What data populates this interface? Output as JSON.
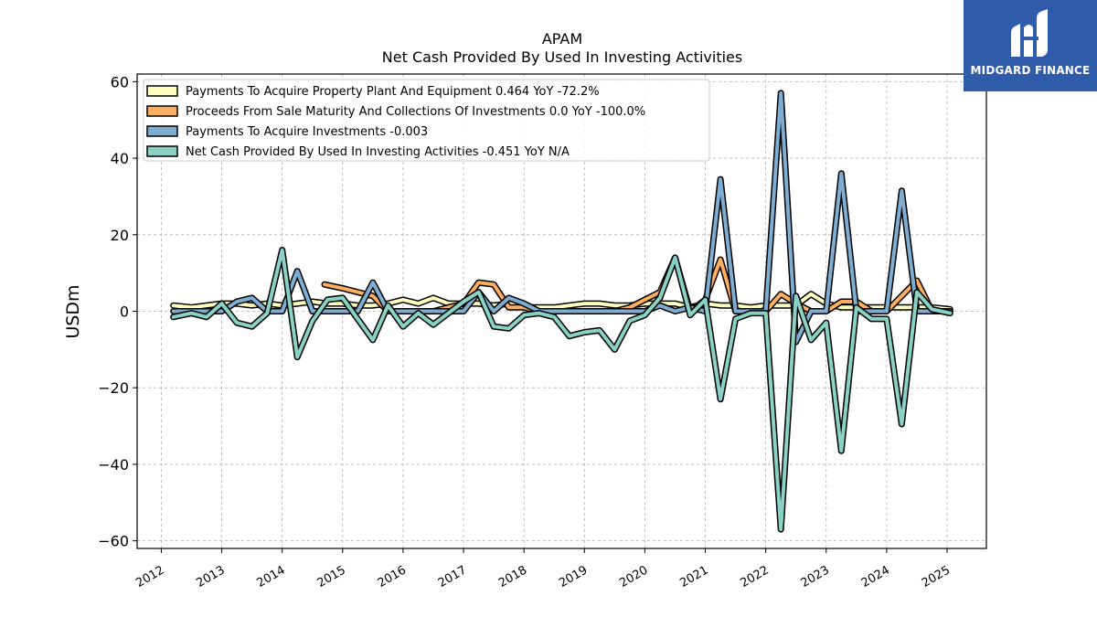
{
  "chart_data": {
    "type": "line",
    "title": "APAM",
    "subtitle": "Net Cash Provided By Used In Investing Activities",
    "ylabel": "USDm",
    "xlabel": "",
    "ylim": [
      -62,
      62
    ],
    "xlim": [
      2011.6,
      2025.65
    ],
    "yticks": [
      -60,
      -40,
      -20,
      0,
      20,
      40,
      60
    ],
    "ytick_labels": [
      "−60",
      "−40",
      "−20",
      "0",
      "20",
      "40",
      "60"
    ],
    "xticks": [
      2012,
      2013,
      2014,
      2015,
      2016,
      2017,
      2018,
      2019,
      2020,
      2021,
      2022,
      2023,
      2024,
      2025
    ],
    "xtick_labels": [
      "2012",
      "2013",
      "2014",
      "2015",
      "2016",
      "2017",
      "2018",
      "2019",
      "2020",
      "2021",
      "2022",
      "2023",
      "2024",
      "2025"
    ],
    "grid": true,
    "legend_position": "top-left",
    "series": [
      {
        "name": "Payments To Acquire Property Plant And Equipment  0.464 YoY -72.2%",
        "color": "#ffffbf",
        "x": [
          2012.2,
          2012.5,
          2012.75,
          2013.0,
          2013.25,
          2013.5,
          2013.75,
          2014.0,
          2014.25,
          2014.5,
          2014.75,
          2015.0,
          2015.25,
          2015.5,
          2015.75,
          2016.0,
          2016.25,
          2016.5,
          2016.75,
          2017.0,
          2017.25,
          2017.5,
          2017.75,
          2018.0,
          2018.25,
          2018.5,
          2018.75,
          2019.0,
          2019.25,
          2019.5,
          2019.75,
          2020.0,
          2020.25,
          2020.5,
          2020.75,
          2021.0,
          2021.25,
          2021.5,
          2021.75,
          2022.0,
          2022.25,
          2022.5,
          2022.75,
          2023.0,
          2023.25,
          2023.5,
          2023.75,
          2024.0,
          2024.25,
          2024.5,
          2024.75,
          2025.05
        ],
        "values": [
          1.5,
          1.0,
          1.5,
          2.0,
          2.0,
          1.5,
          2.0,
          1.5,
          2.0,
          2.5,
          2.0,
          2.0,
          1.5,
          1.5,
          2.0,
          3.0,
          2.0,
          3.5,
          2.0,
          2.0,
          2.0,
          1.5,
          2.0,
          1.0,
          1.0,
          1.0,
          1.5,
          2.0,
          2.0,
          1.5,
          1.5,
          2.0,
          2.0,
          2.0,
          1.0,
          2.0,
          1.5,
          1.5,
          1.0,
          1.5,
          1.5,
          1.5,
          4.5,
          2.0,
          1.0,
          1.0,
          1.0,
          1.0,
          1.0,
          1.0,
          1.0,
          0.5
        ]
      },
      {
        "name": "Proceeds From Sale Maturity And Collections Of Investments  0.0 YoY -100.0%",
        "color": "#fdae61",
        "x": [
          2014.7,
          2015.0,
          2015.25,
          2015.5,
          2015.75,
          2016.0,
          2016.25,
          2016.5,
          2016.75,
          2017.0,
          2017.25,
          2017.5,
          2017.75,
          2018.0,
          2018.25,
          2018.5,
          2018.75,
          2019.0,
          2019.25,
          2019.5,
          2019.75,
          2020.0,
          2020.25,
          2020.5,
          2020.75,
          2021.0,
          2021.25,
          2021.5,
          2021.75,
          2022.0,
          2022.25,
          2022.5,
          2022.75,
          2023.0,
          2023.25,
          2023.5,
          2023.75,
          2024.0,
          2024.25,
          2024.5,
          2024.75,
          2025.05
        ],
        "values": [
          7.0,
          6.0,
          5.0,
          4.0,
          0.0,
          0.0,
          0.0,
          0.0,
          1.0,
          2.0,
          7.5,
          7.0,
          1.0,
          1.0,
          0.0,
          0.0,
          0.0,
          0.0,
          0.0,
          0.0,
          1.0,
          3.0,
          5.0,
          14.0,
          0.0,
          3.0,
          13.5,
          0.0,
          0.0,
          0.0,
          4.5,
          2.0,
          0.0,
          0.0,
          2.5,
          2.5,
          0.0,
          0.0,
          4.0,
          8.0,
          0.0,
          0.0
        ]
      },
      {
        "name": "Payments To Acquire Investments  -0.003",
        "color": "#7fadd2",
        "x": [
          2012.2,
          2012.5,
          2012.75,
          2013.0,
          2013.25,
          2013.5,
          2013.75,
          2014.0,
          2014.25,
          2014.5,
          2014.75,
          2015.0,
          2015.25,
          2015.5,
          2015.75,
          2016.0,
          2016.25,
          2016.5,
          2016.75,
          2017.0,
          2017.25,
          2017.5,
          2017.75,
          2018.0,
          2018.25,
          2018.5,
          2018.75,
          2019.0,
          2019.25,
          2019.5,
          2019.75,
          2020.0,
          2020.25,
          2020.5,
          2020.75,
          2021.0,
          2021.25,
          2021.5,
          2021.75,
          2022.0,
          2022.25,
          2022.5,
          2022.75,
          2023.0,
          2023.25,
          2023.5,
          2023.75,
          2024.0,
          2024.25,
          2024.5,
          2024.75,
          2025.05
        ],
        "values": [
          0.0,
          0.0,
          0.0,
          0.0,
          2.5,
          3.5,
          0.0,
          0.0,
          10.5,
          0.0,
          0.0,
          0.0,
          0.0,
          7.5,
          0.0,
          0.0,
          0.0,
          0.0,
          0.0,
          0.0,
          5.0,
          0.0,
          3.5,
          2.0,
          0.0,
          0.0,
          0.0,
          0.0,
          0.0,
          0.0,
          0.0,
          0.0,
          1.5,
          0.0,
          1.0,
          0.0,
          34.5,
          0.0,
          0.0,
          0.0,
          57.0,
          -8.0,
          0.0,
          0.0,
          36.0,
          0.0,
          0.0,
          0.0,
          31.5,
          0.0,
          0.0,
          0.0
        ]
      },
      {
        "name": "Net Cash Provided By Used In Investing Activities  -0.451 YoY N/A",
        "color": "#88d1c4",
        "x": [
          2012.2,
          2012.5,
          2012.75,
          2013.0,
          2013.25,
          2013.5,
          2013.75,
          2014.0,
          2014.25,
          2014.5,
          2014.75,
          2015.0,
          2015.25,
          2015.5,
          2015.75,
          2016.0,
          2016.25,
          2016.5,
          2016.75,
          2017.0,
          2017.25,
          2017.5,
          2017.75,
          2018.0,
          2018.25,
          2018.5,
          2018.75,
          2019.0,
          2019.25,
          2019.5,
          2019.75,
          2020.0,
          2020.25,
          2020.5,
          2020.75,
          2021.0,
          2021.25,
          2021.5,
          2021.75,
          2022.0,
          2022.25,
          2022.5,
          2022.75,
          2023.0,
          2023.25,
          2023.5,
          2023.75,
          2024.0,
          2024.25,
          2024.5,
          2024.75,
          2025.05
        ],
        "values": [
          -1.5,
          -0.5,
          -1.5,
          2.0,
          -3.0,
          -4.0,
          -0.5,
          16.0,
          -12.0,
          -2.5,
          3.0,
          3.5,
          -2.0,
          -7.5,
          1.5,
          -4.0,
          -0.5,
          -3.5,
          -0.5,
          2.5,
          5.0,
          -4.0,
          -4.5,
          -1.0,
          -0.5,
          -1.5,
          -6.5,
          -5.5,
          -5.0,
          -10.0,
          -2.5,
          -1.0,
          3.5,
          14.0,
          -1.0,
          3.0,
          -23.0,
          -2.0,
          -0.5,
          -0.5,
          -57.0,
          4.0,
          -7.5,
          -3.0,
          -36.5,
          1.0,
          -2.0,
          -2.0,
          -29.5,
          5.0,
          0.5,
          -0.5
        ]
      }
    ]
  },
  "logo": {
    "text": "MIDGARD FINANCE",
    "icon": "midgard-m-logo-icon",
    "background": "#2f5bab"
  }
}
